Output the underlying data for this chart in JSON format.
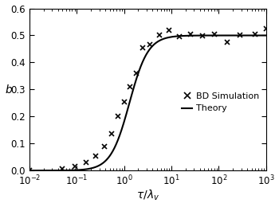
{
  "title": "",
  "xlabel": "$\\tau/\\lambda_v$",
  "ylabel": "$b$",
  "xlim_log": [
    -2,
    3
  ],
  "ylim": [
    0,
    0.6
  ],
  "yticks": [
    0.0,
    0.1,
    0.2,
    0.3,
    0.4,
    0.5,
    0.6
  ],
  "theory_color": "#000000",
  "sim_color": "#000000",
  "tau0": 1.3,
  "n_exp": 2.2,
  "sim_points_x": [
    0.01,
    0.05,
    0.09,
    0.16,
    0.25,
    0.38,
    0.55,
    0.75,
    1.0,
    1.35,
    1.8,
    2.5,
    3.5,
    5.5,
    9.0,
    15.0,
    25.0,
    45.0,
    80.0,
    150.0,
    280.0,
    600.0,
    1000.0
  ],
  "sim_points_y": [
    0.0,
    0.005,
    0.015,
    0.03,
    0.055,
    0.09,
    0.135,
    0.2,
    0.255,
    0.31,
    0.36,
    0.455,
    0.465,
    0.5,
    0.52,
    0.495,
    0.505,
    0.498,
    0.505,
    0.475,
    0.5,
    0.505,
    0.525
  ],
  "legend_sim_label": "BD Simulation",
  "legend_theory_label": "Theory",
  "background_color": "#ffffff"
}
